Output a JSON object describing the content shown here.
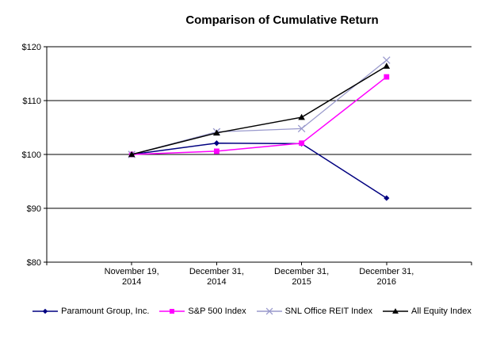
{
  "chart_data": {
    "type": "line",
    "title": "Comparison of Cumulative Return",
    "categories": [
      {
        "line1": "November 19,",
        "line2": "2014"
      },
      {
        "line1": "December 31,",
        "line2": "2014"
      },
      {
        "line1": "December 31,",
        "line2": "2015"
      },
      {
        "line1": "December 31,",
        "line2": "2016"
      }
    ],
    "series": [
      {
        "name": "Paramount Group, Inc.",
        "marker": "diamond",
        "color": "#000080",
        "values": [
          100,
          102.1,
          102.0,
          91.9
        ]
      },
      {
        "name": "S&P 500 Index",
        "marker": "square",
        "color": "#FF00FF",
        "values": [
          100,
          100.6,
          102.1,
          114.4
        ]
      },
      {
        "name": "SNL Office REIT Index",
        "marker": "x",
        "color": "#9999CC",
        "values": [
          100,
          104.2,
          104.8,
          117.5
        ]
      },
      {
        "name": "All Equity Index",
        "marker": "triangle",
        "color": "#000000",
        "values": [
          100,
          104.0,
          106.9,
          116.4
        ]
      }
    ],
    "y_axis": {
      "min": 80,
      "max": 120,
      "step": 10,
      "labels": [
        "$120",
        "$110",
        "$100",
        "$90",
        "$80"
      ]
    },
    "x_axis_label_rows": 2,
    "grid": true,
    "gridline_color": "#000000",
    "background_color": "#FFFFFF",
    "legend_position": "bottom"
  }
}
